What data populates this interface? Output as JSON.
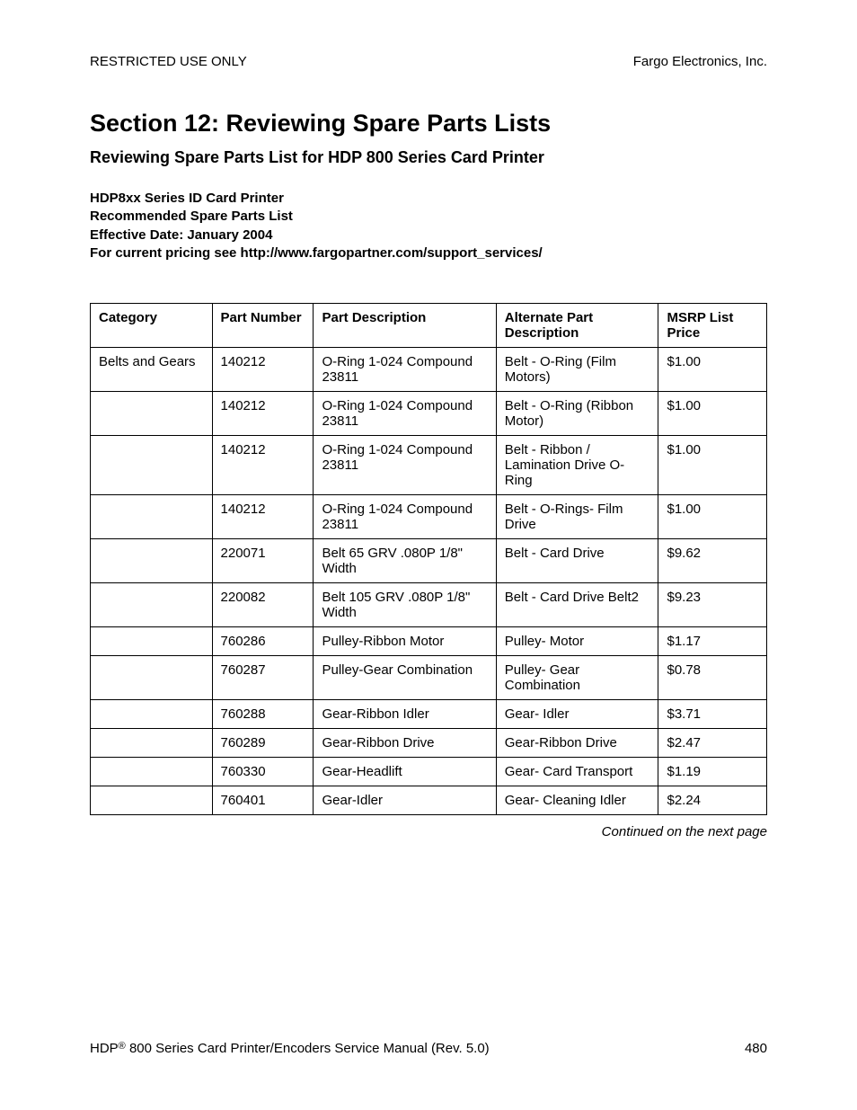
{
  "header": {
    "left": "RESTRICTED USE ONLY",
    "right": "Fargo Electronics, Inc."
  },
  "section_title": "Section 12:  Reviewing Spare Parts Lists",
  "subtitle": "Reviewing Spare Parts List for HDP 800 Series Card Printer",
  "info_lines": {
    "line1": "HDP8xx Series ID Card Printer",
    "line2": "Recommended Spare Parts List",
    "line3": "Effective Date: January 2004",
    "line4": "For current pricing see http://www.fargopartner.com/support_services/"
  },
  "table": {
    "headers": {
      "category": "Category",
      "part_number": "Part Number",
      "part_description": "Part Description",
      "alternate": "Alternate Part Description",
      "price": "MSRP List Price"
    },
    "rows": [
      {
        "category": "Belts and Gears",
        "part_number": "140212",
        "description": "O-Ring 1-024 Compound 23811",
        "alternate": "Belt - O-Ring (Film Motors)",
        "price": "$1.00"
      },
      {
        "category": "",
        "part_number": "140212",
        "description": "O-Ring 1-024 Compound 23811",
        "alternate": "Belt - O-Ring (Ribbon Motor)",
        "price": "$1.00"
      },
      {
        "category": "",
        "part_number": "140212",
        "description": "O-Ring 1-024 Compound 23811",
        "alternate": "Belt - Ribbon / Lamination Drive O-Ring",
        "price": "$1.00"
      },
      {
        "category": "",
        "part_number": "140212",
        "description": "O-Ring 1-024 Compound 23811",
        "alternate": "Belt - O-Rings- Film Drive",
        "price": "$1.00"
      },
      {
        "category": "",
        "part_number": "220071",
        "description": "Belt 65 GRV .080P 1/8\" Width",
        "alternate": "Belt - Card Drive",
        "price": "$9.62"
      },
      {
        "category": "",
        "part_number": "220082",
        "description": "Belt 105 GRV .080P 1/8\" Width",
        "alternate": "Belt - Card Drive Belt2",
        "price": "$9.23"
      },
      {
        "category": "",
        "part_number": "760286",
        "description": "Pulley-Ribbon Motor",
        "alternate": "Pulley- Motor",
        "price": "$1.17"
      },
      {
        "category": "",
        "part_number": "760287",
        "description": "Pulley-Gear Combination",
        "alternate": "Pulley- Gear Combination",
        "price": "$0.78"
      },
      {
        "category": "",
        "part_number": "760288",
        "description": "Gear-Ribbon Idler",
        "alternate": "Gear- Idler",
        "price": "$3.71"
      },
      {
        "category": "",
        "part_number": "760289",
        "description": "Gear-Ribbon Drive",
        "alternate": "Gear-Ribbon Drive",
        "price": "$2.47"
      },
      {
        "category": "",
        "part_number": "760330",
        "description": "Gear-Headlift",
        "alternate": "Gear- Card Transport",
        "price": "$1.19"
      },
      {
        "category": "",
        "part_number": "760401",
        "description": "Gear-Idler",
        "alternate": "Gear- Cleaning Idler",
        "price": "$2.24"
      }
    ]
  },
  "continued": "Continued on the next page",
  "footer": {
    "left_pre": "HDP",
    "left_post": " 800 Series Card Printer/Encoders Service Manual (Rev. 5.0)",
    "page": "480"
  }
}
